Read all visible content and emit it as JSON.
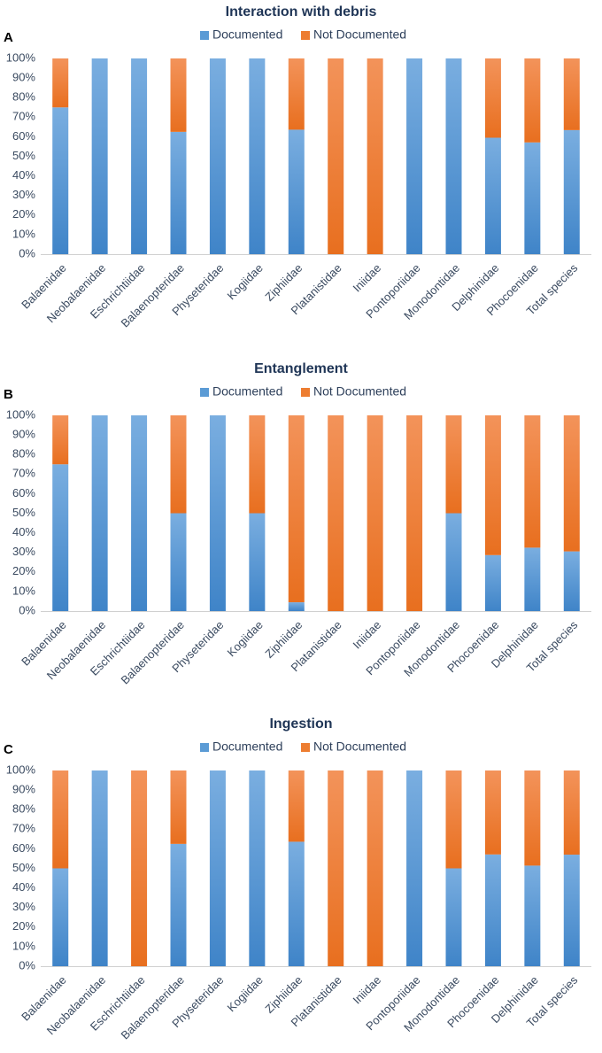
{
  "chart_data": [
    {
      "panel": "A",
      "type": "bar",
      "stacked": true,
      "title": "Interaction with debris",
      "categories": [
        "Balaenidae",
        "Neobalaenidae",
        "Eschrichtiidae",
        "Balaenopteridae",
        "Physeteridae",
        "Kogiidae",
        "Ziphiidae",
        "Platanistidae",
        "Iniidae",
        "Pontoporiidae",
        "Monodontidae",
        "Delphinidae",
        "Phocoenidae",
        "Total species"
      ],
      "series": [
        {
          "name": "Documented",
          "values": [
            75,
            100,
            100,
            62.5,
            100,
            100,
            63.6,
            0,
            0,
            100,
            100,
            59.5,
            57.1,
            63.4
          ]
        },
        {
          "name": "Not Documented",
          "values": [
            25,
            0,
            0,
            37.5,
            0,
            0,
            36.4,
            100,
            100,
            0,
            0,
            40.5,
            42.9,
            36.6
          ]
        }
      ],
      "yticks": [
        "0%",
        "10%",
        "20%",
        "30%",
        "40%",
        "50%",
        "60%",
        "70%",
        "80%",
        "90%",
        "100%"
      ],
      "ylim": [
        0,
        100
      ],
      "legend": "top-center"
    },
    {
      "panel": "B",
      "type": "bar",
      "stacked": true,
      "title": "Entanglement",
      "categories": [
        "Balaenidae",
        "Neobalaenidae",
        "Eschrichtiidae",
        "Balaenopteridae",
        "Physeteridae",
        "Kogiidae",
        "Ziphiidae",
        "Platanistidae",
        "Iniidae",
        "Pontoporiidae",
        "Monodontidae",
        "Phocoenidae",
        "Delphinidae",
        "Total species"
      ],
      "series": [
        {
          "name": "Documented",
          "values": [
            75,
            100,
            100,
            50,
            100,
            50,
            4.5,
            0,
            0,
            0,
            50,
            28.6,
            32.4,
            30.5
          ]
        },
        {
          "name": "Not Documented",
          "values": [
            25,
            0,
            0,
            50,
            0,
            50,
            95.5,
            100,
            100,
            100,
            50,
            71.4,
            67.6,
            69.5
          ]
        }
      ],
      "yticks": [
        "0%",
        "10%",
        "20%",
        "30%",
        "40%",
        "50%",
        "60%",
        "70%",
        "80%",
        "90%",
        "100%"
      ],
      "ylim": [
        0,
        100
      ],
      "legend": "top-center"
    },
    {
      "panel": "C",
      "type": "bar",
      "stacked": true,
      "title": "Ingestion",
      "categories": [
        "Balaenidae",
        "Neobalaenidae",
        "Eschrichtiidae",
        "Balaenopteridae",
        "Physeteridae",
        "Kogiidae",
        "Ziphiidae",
        "Platanistidae",
        "Iniidae",
        "Pontoporiidae",
        "Monodontidae",
        "Phocoenidae",
        "Delphinidae",
        "Total species"
      ],
      "series": [
        {
          "name": "Documented",
          "values": [
            50,
            100,
            0,
            62.5,
            100,
            100,
            63.6,
            0,
            0,
            100,
            50,
            57.1,
            51.4,
            57
          ]
        },
        {
          "name": "Not Documented",
          "values": [
            50,
            0,
            100,
            37.5,
            0,
            0,
            36.4,
            100,
            100,
            0,
            50,
            42.9,
            48.6,
            43
          ]
        }
      ],
      "yticks": [
        "0%",
        "10%",
        "20%",
        "30%",
        "40%",
        "50%",
        "60%",
        "70%",
        "80%",
        "90%",
        "100%"
      ],
      "ylim": [
        0,
        100
      ],
      "legend": "top-center"
    }
  ],
  "colors": {
    "documented": "#5b9bd5",
    "not_documented": "#ed7d31"
  }
}
